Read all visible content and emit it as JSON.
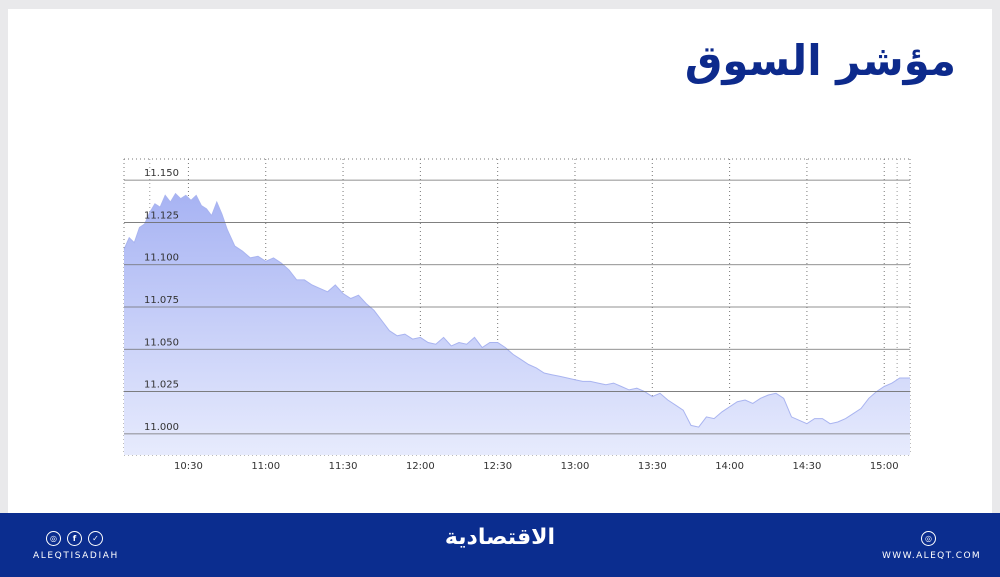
{
  "title": "مؤشر السوق",
  "footer": {
    "handle": "ALEQTISADIAH",
    "logo_text": "الاقتصادية",
    "website": "WWW.ALEQT.COM",
    "social_icons": [
      "instagram-icon",
      "facebook-icon",
      "twitter-icon"
    ],
    "web_icon": "globe-icon",
    "background": "#0b2d8f"
  },
  "colors": {
    "title": "#0d2a8c",
    "area_fill_top": "#a7b3f3",
    "area_fill_bottom": "#e7ebfd",
    "area_stroke": "#a9b4f0"
  },
  "chart_data": {
    "type": "area",
    "title": "",
    "xlabel": "",
    "ylabel": "",
    "ylim": [
      10.9875,
      11.1625
    ],
    "yticks": [
      11.0,
      11.025,
      11.05,
      11.075,
      11.1,
      11.125,
      11.15
    ],
    "ytick_labels": [
      "11.000",
      "11.025",
      "11.050",
      "11.075",
      "11.100",
      "11.125",
      "11.150"
    ],
    "xlim": [
      "10:05",
      "15:10"
    ],
    "xticks": [
      "10:30",
      "11:00",
      "11:30",
      "12:00",
      "12:30",
      "13:00",
      "13:30",
      "14:00",
      "14:30",
      "15:00"
    ],
    "grid": true,
    "series": [
      {
        "x": [
          "10:05",
          "10:07",
          "10:09",
          "10:11",
          "10:13",
          "10:15",
          "10:17",
          "10:19",
          "10:21",
          "10:23",
          "10:25",
          "10:27",
          "10:29",
          "10:31",
          "10:33",
          "10:35",
          "10:37",
          "10:39",
          "10:41",
          "10:43",
          "10:45",
          "10:48",
          "10:51",
          "10:54",
          "10:57",
          "11:00",
          "11:03",
          "11:06",
          "11:09",
          "11:12",
          "11:15",
          "11:18",
          "11:21",
          "11:24",
          "11:27",
          "11:30",
          "11:33",
          "11:36",
          "11:39",
          "11:42",
          "11:45",
          "11:48",
          "11:51",
          "11:54",
          "11:57",
          "12:00",
          "12:03",
          "12:06",
          "12:09",
          "12:12",
          "12:15",
          "12:18",
          "12:21",
          "12:24",
          "12:27",
          "12:30",
          "12:33",
          "12:36",
          "12:39",
          "12:42",
          "12:45",
          "12:48",
          "12:51",
          "12:54",
          "12:57",
          "13:00",
          "13:03",
          "13:06",
          "13:09",
          "13:12",
          "13:15",
          "13:18",
          "13:21",
          "13:24",
          "13:27",
          "13:30",
          "13:33",
          "13:36",
          "13:39",
          "13:42",
          "13:45",
          "13:48",
          "13:51",
          "13:54",
          "13:57",
          "14:00",
          "14:03",
          "14:06",
          "14:09",
          "14:12",
          "14:15",
          "14:18",
          "14:21",
          "14:24",
          "14:27",
          "14:30",
          "14:33",
          "14:36",
          "14:39",
          "14:42",
          "14:45",
          "14:48",
          "14:51",
          "14:54",
          "14:57",
          "15:00",
          "15:03",
          "15:06",
          "15:10"
        ],
        "y": [
          11.109,
          11.116,
          11.113,
          11.122,
          11.124,
          11.131,
          11.136,
          11.134,
          11.141,
          11.137,
          11.142,
          11.139,
          11.141,
          11.138,
          11.141,
          11.135,
          11.133,
          11.129,
          11.137,
          11.13,
          11.121,
          11.111,
          11.108,
          11.104,
          11.105,
          11.102,
          11.104,
          11.101,
          11.097,
          11.091,
          11.091,
          11.088,
          11.086,
          11.084,
          11.088,
          11.083,
          11.08,
          11.082,
          11.077,
          11.073,
          11.067,
          11.061,
          11.058,
          11.059,
          11.056,
          11.057,
          11.054,
          11.053,
          11.057,
          11.052,
          11.054,
          11.053,
          11.057,
          11.051,
          11.054,
          11.054,
          11.051,
          11.047,
          11.044,
          11.041,
          11.039,
          11.036,
          11.035,
          11.034,
          11.033,
          11.032,
          11.031,
          11.031,
          11.03,
          11.029,
          11.03,
          11.028,
          11.026,
          11.027,
          11.025,
          11.022,
          11.024,
          11.02,
          11.017,
          11.014,
          11.005,
          11.004,
          11.01,
          11.009,
          11.013,
          11.016,
          11.019,
          11.02,
          11.018,
          11.021,
          11.023,
          11.024,
          11.021,
          11.01,
          11.008,
          11.006,
          11.009,
          11.009,
          11.006,
          11.007,
          11.009,
          11.012,
          11.015,
          11.021,
          11.025,
          11.028,
          11.03,
          11.033,
          11.033
        ]
      }
    ]
  }
}
